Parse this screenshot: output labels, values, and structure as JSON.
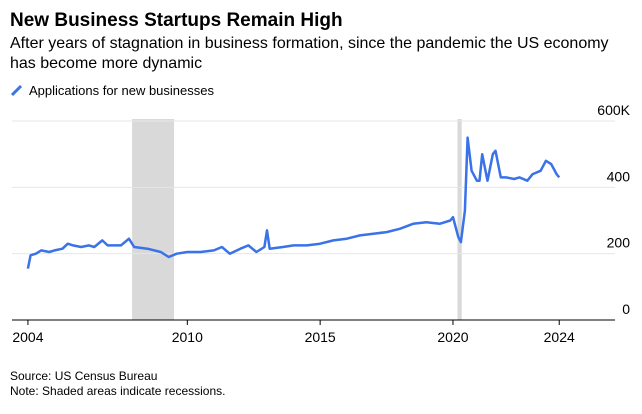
{
  "chart_data": {
    "type": "line",
    "title": "New Business Startups Remain High",
    "subtitle": "After years of stagnation in business formation, since the pandemic the US economy has become more dynamic",
    "source": "Source: US Census Bureau",
    "note": "Note: Shaded areas indicate recessions.",
    "recessions": [
      [
        2007.92,
        2009.5
      ],
      [
        2020.17,
        2020.33
      ]
    ],
    "xlim": [
      2003.4,
      2026.1
    ],
    "xticks": [
      2004,
      2010,
      2015,
      2020,
      2024
    ],
    "ylim": [
      0,
      600
    ],
    "yticks": [
      0,
      200,
      400,
      {
        "value": 600,
        "label": "600K"
      }
    ],
    "grid": true,
    "series": [
      {
        "name": "Applications for new businesses",
        "color": "#3a72e8",
        "x": [
          2004.0,
          2004.1,
          2004.3,
          2004.5,
          2004.8,
          2005.0,
          2005.3,
          2005.5,
          2005.7,
          2006.0,
          2006.3,
          2006.5,
          2006.8,
          2007.0,
          2007.5,
          2007.8,
          2008.0,
          2008.5,
          2009.0,
          2009.3,
          2009.6,
          2010.0,
          2010.5,
          2011.0,
          2011.3,
          2011.6,
          2012.0,
          2012.3,
          2012.6,
          2012.9,
          2013.0,
          2013.1,
          2013.6,
          2014.0,
          2014.5,
          2015.0,
          2015.5,
          2016.0,
          2016.5,
          2017.0,
          2017.5,
          2018.0,
          2018.5,
          2019.0,
          2019.5,
          2019.9,
          2020.0,
          2020.2,
          2020.3,
          2020.45,
          2020.55,
          2020.7,
          2020.9,
          2021.0,
          2021.1,
          2021.3,
          2021.5,
          2021.6,
          2021.8,
          2022.0,
          2022.3,
          2022.5,
          2022.8,
          2023.0,
          2023.3,
          2023.5,
          2023.7,
          2023.9,
          2024.0
        ],
        "values": [
          155,
          195,
          200,
          210,
          205,
          210,
          215,
          230,
          225,
          220,
          225,
          220,
          240,
          225,
          225,
          245,
          220,
          215,
          205,
          190,
          200,
          205,
          205,
          210,
          220,
          200,
          215,
          225,
          205,
          220,
          270,
          215,
          220,
          225,
          225,
          230,
          240,
          245,
          255,
          260,
          265,
          275,
          290,
          295,
          290,
          300,
          310,
          250,
          235,
          330,
          550,
          450,
          420,
          420,
          500,
          420,
          500,
          510,
          430,
          430,
          425,
          430,
          420,
          440,
          450,
          480,
          470,
          440,
          430
        ]
      }
    ]
  }
}
